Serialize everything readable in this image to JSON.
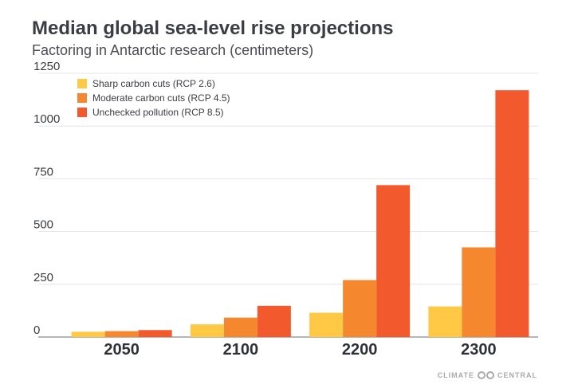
{
  "chart_data": {
    "type": "bar",
    "title": "Median global sea-level rise projections",
    "subtitle": "Factoring in Antarctic research (centimeters)",
    "xlabel": "",
    "ylabel": "",
    "categories": [
      "2050",
      "2100",
      "2200",
      "2300"
    ],
    "series": [
      {
        "name": "Sharp carbon cuts (RCP 2.6)",
        "color": "#ffc845",
        "values": [
          25,
          60,
          115,
          145
        ]
      },
      {
        "name": "Moderate carbon cuts (RCP 4.5)",
        "color": "#f5882f",
        "values": [
          28,
          92,
          270,
          425
        ]
      },
      {
        "name": "Unchecked pollution (RCP 8.5)",
        "color": "#f25a2e",
        "values": [
          33,
          148,
          720,
          1170
        ]
      }
    ],
    "ylim": [
      0,
      1250
    ],
    "yticks": [
      "0",
      "250",
      "500",
      "750",
      "1000",
      "1250"
    ],
    "grid": true,
    "legend_position": "top-left"
  },
  "branding": {
    "left": "CLIMATE",
    "right": "CENTRAL"
  }
}
